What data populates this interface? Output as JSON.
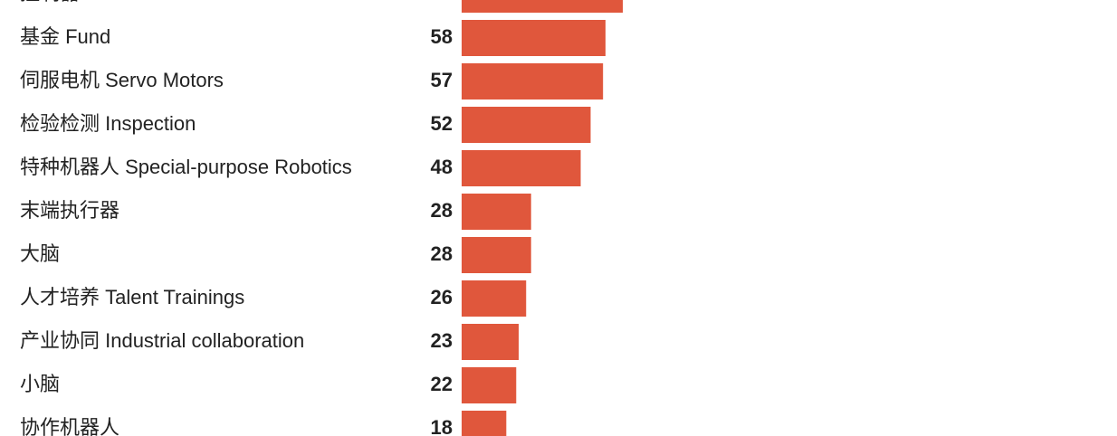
{
  "chart_data": {
    "type": "bar",
    "categories": [
      "控制器 Controllers",
      "基金 Fund",
      "伺服电机 Servo Motors",
      "检验检测 Inspection",
      "特种机器人 Special-purpose Robotics",
      "末端执行器",
      "大脑",
      "人才培养 Talent Trainings",
      "产业协同 Industrial collaboration",
      "小脑",
      "协作机器人"
    ],
    "values": [
      65,
      58,
      57,
      52,
      48,
      28,
      28,
      26,
      23,
      22,
      18
    ],
    "color": "#e0573c"
  }
}
